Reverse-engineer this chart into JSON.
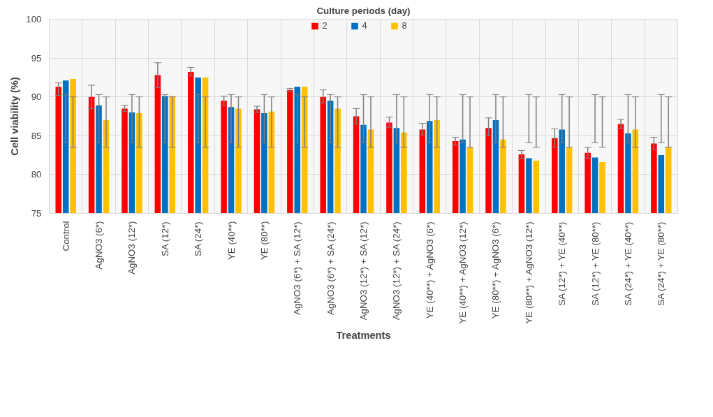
{
  "chart_data": {
    "type": "bar",
    "legend_title": "Culture periods (day)",
    "xlabel": "Treatments",
    "ylabel": "Cell viability (%)",
    "categories": [
      "Control",
      "AgNO3 (6*)",
      "AgNO3 (12*)",
      "SA (12*)",
      "SA (24*)",
      "YE (40**)",
      "YE (80**)",
      "AgNO3 (6*) + SA (12*)",
      "AgNO3 (6*) + SA (24*)",
      "AgNO3 (12*) + SA (12*)",
      "AgNO3 (12*) + SA (24*)",
      "YE (40**) + AgNO3 (6*)",
      "YE (40**) + AgNO3 (12*)",
      "YE (80**) + AgNO3 (6*)",
      "YE (80**) + AgNO3 (12*)",
      "SA (12*) + YE (40**)",
      "SA (12*) + YE (80**)",
      "SA (24*) + YE (40**)",
      "SA (24*) + YE (80**)"
    ],
    "series": [
      {
        "name": "2",
        "color": "#ff0000",
        "values": [
          91.3,
          90.0,
          88.5,
          92.8,
          93.2,
          89.5,
          88.4,
          90.9,
          90.0,
          87.5,
          86.7,
          85.8,
          84.3,
          86.0,
          82.6,
          84.7,
          82.8,
          86.5,
          84.0
        ],
        "errors": [
          [
            90.2,
            91.8
          ],
          [
            88.5,
            91.5
          ],
          [
            88.1,
            88.9
          ],
          [
            91.2,
            94.4
          ],
          [
            92.7,
            93.8
          ],
          [
            88.9,
            90.1
          ],
          [
            88.0,
            88.8
          ],
          [
            90.7,
            91.1
          ],
          [
            89.2,
            90.9
          ],
          [
            86.5,
            88.5
          ],
          [
            86.1,
            87.4
          ],
          [
            85.1,
            86.6
          ],
          [
            83.8,
            84.8
          ],
          [
            85.0,
            87.3
          ],
          [
            82.1,
            83.1
          ],
          [
            83.5,
            85.9
          ],
          [
            82.1,
            83.5
          ],
          [
            85.9,
            87.1
          ],
          [
            83.2,
            84.8
          ]
        ]
      },
      {
        "name": "4",
        "color": "#0070c0",
        "values": [
          92.1,
          88.9,
          88.0,
          90.1,
          92.5,
          88.7,
          87.9,
          91.3,
          89.5,
          86.4,
          86.0,
          86.9,
          84.5,
          87.0,
          82.1,
          85.8,
          82.2,
          85.3,
          82.5
        ],
        "errors": [
          [
            84.1,
            90.3
          ],
          [
            84.1,
            90.3
          ],
          [
            84.1,
            90.3
          ],
          [
            84.1,
            90.3
          ],
          [
            84.1,
            90.3
          ],
          [
            84.1,
            90.3
          ],
          [
            84.1,
            90.3
          ],
          [
            84.1,
            90.3
          ],
          [
            84.1,
            90.3
          ],
          [
            84.1,
            90.3
          ],
          [
            84.1,
            90.3
          ],
          [
            84.1,
            90.3
          ],
          [
            84.1,
            90.3
          ],
          [
            84.1,
            90.3
          ],
          [
            84.1,
            90.3
          ],
          [
            84.1,
            90.3
          ],
          [
            84.1,
            90.3
          ],
          [
            84.1,
            90.3
          ],
          [
            84.1,
            90.3
          ]
        ]
      },
      {
        "name": "8",
        "color": "#ffc000",
        "values": [
          92.3,
          87.0,
          87.9,
          90.1,
          92.5,
          88.5,
          88.1,
          91.3,
          88.5,
          85.8,
          85.4,
          87.0,
          83.5,
          84.5,
          81.8,
          83.5,
          81.6,
          85.8,
          83.5
        ],
        "errors": [
          [
            83.5,
            90.0
          ],
          [
            83.5,
            90.0
          ],
          [
            83.5,
            90.0
          ],
          [
            83.5,
            90.0
          ],
          [
            83.5,
            90.0
          ],
          [
            83.5,
            90.0
          ],
          [
            83.5,
            90.0
          ],
          [
            83.5,
            90.0
          ],
          [
            83.5,
            90.0
          ],
          [
            83.5,
            90.0
          ],
          [
            83.5,
            90.0
          ],
          [
            83.5,
            90.0
          ],
          [
            83.5,
            90.0
          ],
          [
            83.5,
            90.0
          ],
          [
            83.5,
            90.0
          ],
          [
            83.5,
            90.0
          ],
          [
            83.5,
            90.0
          ],
          [
            83.5,
            90.0
          ],
          [
            83.5,
            90.0
          ]
        ]
      }
    ],
    "ylim": [
      75,
      100
    ],
    "yticks": [
      75,
      80,
      85,
      90,
      95,
      100
    ],
    "grid": true,
    "legend": "top"
  }
}
